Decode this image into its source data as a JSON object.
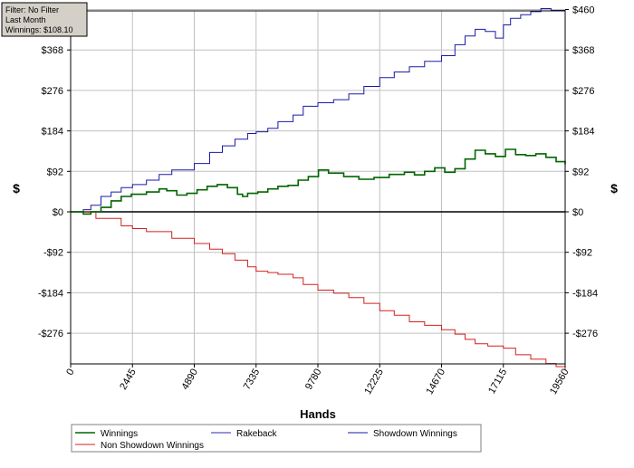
{
  "info_box": {
    "filter": "Filter: No Filter",
    "period": "Last Month",
    "winnings": "Winnings: $108.10"
  },
  "colors": {
    "winnings": "#006400",
    "rakeback": "#2b2bb0",
    "showdown": "#1a1aa8",
    "non_showdown": "#d42020",
    "zero_line": "#000000",
    "grid": "#c0c0c0",
    "info_box_bg": "#d4d0c8"
  },
  "chart_data": {
    "type": "line",
    "title": "",
    "xlabel": "Hands",
    "ylabel_left": "$",
    "ylabel_right": "$",
    "xlim": [
      0,
      19560
    ],
    "ylim": [
      -368,
      460
    ],
    "x_ticks": [
      0,
      2445,
      4890,
      7335,
      9780,
      12225,
      14670,
      17115,
      19560
    ],
    "x_tick_labels": [
      "0",
      "2445",
      "4890",
      "7335",
      "9780",
      "12225",
      "14670",
      "17115",
      "19560"
    ],
    "y_ticks": [
      460,
      368,
      276,
      184,
      92,
      0,
      -92,
      -184,
      -276
    ],
    "y_tick_labels": [
      "$460",
      "$368",
      "$276",
      "$184",
      "$92",
      "$0",
      "-$92",
      "-$184",
      "-$276"
    ],
    "grid": true,
    "legend_position": "bottom",
    "series": [
      {
        "name": "Winnings",
        "color": "#006400",
        "x": [
          0,
          500,
          800,
          1200,
          1600,
          2000,
          2400,
          3000,
          3500,
          3800,
          4200,
          4600,
          5000,
          5400,
          5800,
          6200,
          6600,
          6800,
          7000,
          7400,
          7800,
          8200,
          8600,
          9000,
          9400,
          9800,
          10200,
          10800,
          11400,
          12000,
          12600,
          13200,
          13600,
          14000,
          14400,
          14800,
          15200,
          15600,
          16000,
          16400,
          16800,
          17200,
          17600,
          18000,
          18400,
          18800,
          19200,
          19560
        ],
        "y": [
          0,
          -5,
          0,
          10,
          25,
          35,
          40,
          45,
          52,
          48,
          38,
          42,
          50,
          58,
          62,
          55,
          40,
          35,
          42,
          45,
          52,
          58,
          60,
          72,
          80,
          95,
          88,
          80,
          74,
          78,
          85,
          90,
          84,
          92,
          100,
          90,
          98,
          120,
          140,
          132,
          126,
          142,
          130,
          128,
          132,
          124,
          114,
          108.1
        ]
      },
      {
        "name": "Rakeback",
        "color": "#2b2bb0",
        "x": [],
        "y": []
      },
      {
        "name": "Showdown Winnings",
        "color": "#1a1aa8",
        "x": [
          0,
          500,
          800,
          1200,
          1600,
          2000,
          2445,
          3000,
          3500,
          4000,
          4890,
          5500,
          6000,
          6500,
          7000,
          7335,
          7800,
          8200,
          8800,
          9200,
          9780,
          10400,
          11000,
          11600,
          12225,
          12800,
          13400,
          14000,
          14670,
          15200,
          15600,
          16000,
          16400,
          16800,
          17115,
          17400,
          17800,
          18200,
          18600,
          19000,
          19560
        ],
        "y": [
          0,
          5,
          15,
          35,
          45,
          55,
          62,
          72,
          85,
          95,
          110,
          135,
          150,
          165,
          178,
          182,
          190,
          205,
          220,
          240,
          248,
          255,
          268,
          285,
          305,
          318,
          330,
          342,
          355,
          380,
          400,
          415,
          410,
          395,
          425,
          440,
          448,
          455,
          462,
          458,
          452
        ]
      },
      {
        "name": "Non Showdown Winnings",
        "color": "#d42020",
        "x": [
          0,
          1000,
          2000,
          2445,
          3000,
          4000,
          4890,
          5500,
          6000,
          6500,
          7000,
          7335,
          7800,
          8200,
          8800,
          9200,
          9780,
          10400,
          11000,
          11600,
          12225,
          12800,
          13400,
          14000,
          14670,
          15200,
          15600,
          16000,
          16500,
          17115,
          17600,
          18200,
          18800,
          19200,
          19560
        ],
        "y": [
          0,
          -15,
          -32,
          -38,
          -45,
          -60,
          -72,
          -85,
          -95,
          -110,
          -125,
          -135,
          -138,
          -142,
          -150,
          -165,
          -178,
          -185,
          -195,
          -208,
          -225,
          -235,
          -250,
          -258,
          -268,
          -278,
          -290,
          -300,
          -305,
          -310,
          -325,
          -335,
          -345,
          -352,
          -360
        ]
      }
    ]
  }
}
